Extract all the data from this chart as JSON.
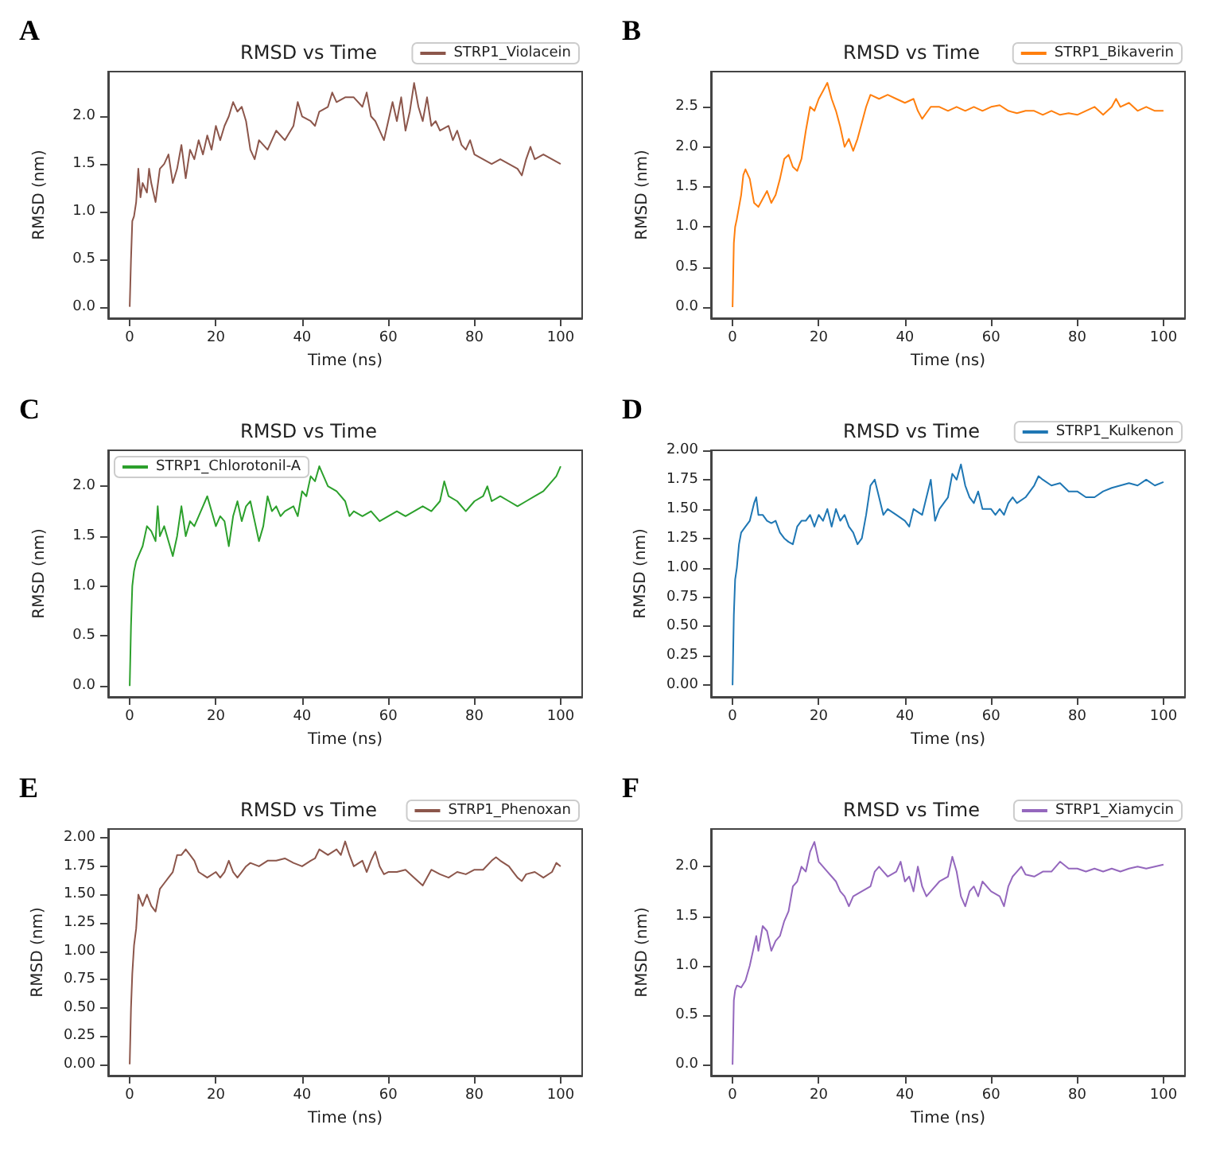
{
  "chart_data": [
    {
      "type": "line",
      "title": "RMSD vs Time",
      "xlabel": "Time (ns)",
      "ylabel": "RMSD (nm)",
      "annotations": [
        "A"
      ],
      "legend": "top right",
      "grid": false,
      "xlim": [
        -5,
        105
      ],
      "ylim": [
        -0.12,
        2.47
      ],
      "xticks": [
        0,
        20,
        40,
        60,
        80,
        100
      ],
      "yticks": [
        {
          "value": 0,
          "label": "0.0"
        },
        {
          "value": 0.5,
          "label": "0.5"
        },
        {
          "value": 1,
          "label": "1.0"
        },
        {
          "value": 1.5,
          "label": "1.5"
        },
        {
          "value": 2,
          "label": "2.0"
        }
      ],
      "series": [
        {
          "name": "STRP1_Violacein",
          "color": "#8c564b",
          "x": [
            0,
            0.3,
            0.6,
            1,
            1.5,
            2,
            2.5,
            3,
            4,
            4.5,
            5,
            6,
            7,
            8,
            9,
            10,
            11,
            12,
            13,
            14,
            15,
            16,
            17,
            18,
            19,
            20,
            21,
            22,
            23,
            24,
            25,
            26,
            27,
            28,
            29,
            30,
            32,
            34,
            36,
            38,
            39,
            40,
            42,
            43,
            44,
            46,
            47,
            48,
            50,
            52,
            54,
            55,
            56,
            57,
            58,
            59,
            60,
            61,
            62,
            63,
            64,
            65,
            66,
            67,
            68,
            69,
            70,
            71,
            72,
            74,
            75,
            76,
            77,
            78,
            79,
            80,
            82,
            84,
            86,
            88,
            90,
            91,
            92,
            93,
            94,
            96,
            98,
            100
          ],
          "values": [
            0,
            0.5,
            0.9,
            0.95,
            1.1,
            1.45,
            1.15,
            1.3,
            1.2,
            1.45,
            1.3,
            1.1,
            1.45,
            1.5,
            1.6,
            1.3,
            1.45,
            1.7,
            1.35,
            1.65,
            1.55,
            1.75,
            1.6,
            1.8,
            1.65,
            1.9,
            1.75,
            1.9,
            2.0,
            2.15,
            2.05,
            2.1,
            1.95,
            1.65,
            1.55,
            1.75,
            1.65,
            1.85,
            1.75,
            1.9,
            2.15,
            2.0,
            1.95,
            1.9,
            2.05,
            2.1,
            2.25,
            2.15,
            2.2,
            2.2,
            2.1,
            2.25,
            2.0,
            1.95,
            1.85,
            1.75,
            1.95,
            2.15,
            1.95,
            2.2,
            1.85,
            2.05,
            2.35,
            2.1,
            1.95,
            2.2,
            1.9,
            1.95,
            1.85,
            1.9,
            1.75,
            1.85,
            1.7,
            1.65,
            1.75,
            1.6,
            1.55,
            1.5,
            1.55,
            1.5,
            1.45,
            1.38,
            1.55,
            1.68,
            1.55,
            1.6,
            1.55,
            1.5
          ]
        }
      ]
    },
    {
      "type": "line",
      "title": "RMSD vs Time",
      "xlabel": "Time (ns)",
      "ylabel": "RMSD (nm)",
      "annotations": [
        "B"
      ],
      "legend": "top right",
      "grid": false,
      "xlim": [
        -5,
        105
      ],
      "ylim": [
        -0.14,
        2.94
      ],
      "xticks": [
        0,
        20,
        40,
        60,
        80,
        100
      ],
      "yticks": [
        {
          "value": 0,
          "label": "0.0"
        },
        {
          "value": 0.5,
          "label": "0.5"
        },
        {
          "value": 1,
          "label": "1.0"
        },
        {
          "value": 1.5,
          "label": "1.5"
        },
        {
          "value": 2,
          "label": "2.0"
        },
        {
          "value": 2.5,
          "label": "2.5"
        }
      ],
      "series": [
        {
          "name": "STRP1_Bikaverin",
          "color": "#ff7f0e",
          "x": [
            0,
            0.3,
            0.6,
            1,
            1.5,
            2,
            2.5,
            3,
            4,
            5,
            6,
            7,
            8,
            9,
            10,
            11,
            12,
            13,
            14,
            15,
            16,
            17,
            18,
            19,
            20,
            21,
            22,
            23,
            24,
            25,
            26,
            27,
            28,
            29,
            30,
            31,
            32,
            34,
            36,
            38,
            40,
            42,
            43,
            44,
            46,
            48,
            50,
            52,
            54,
            56,
            58,
            60,
            62,
            64,
            66,
            68,
            70,
            72,
            74,
            76,
            78,
            80,
            82,
            84,
            86,
            88,
            89,
            90,
            92,
            94,
            96,
            98,
            100
          ],
          "values": [
            0,
            0.8,
            1.0,
            1.1,
            1.25,
            1.4,
            1.65,
            1.72,
            1.6,
            1.3,
            1.25,
            1.35,
            1.45,
            1.3,
            1.4,
            1.6,
            1.85,
            1.9,
            1.75,
            1.7,
            1.85,
            2.2,
            2.5,
            2.45,
            2.6,
            2.7,
            2.8,
            2.6,
            2.45,
            2.25,
            2.0,
            2.1,
            1.95,
            2.1,
            2.3,
            2.5,
            2.65,
            2.6,
            2.65,
            2.6,
            2.55,
            2.6,
            2.45,
            2.35,
            2.5,
            2.5,
            2.45,
            2.5,
            2.45,
            2.5,
            2.45,
            2.5,
            2.52,
            2.45,
            2.42,
            2.45,
            2.45,
            2.4,
            2.45,
            2.4,
            2.42,
            2.4,
            2.45,
            2.5,
            2.4,
            2.5,
            2.6,
            2.5,
            2.55,
            2.45,
            2.5,
            2.45,
            2.45
          ]
        }
      ]
    },
    {
      "type": "line",
      "title": "RMSD vs Time",
      "xlabel": "Time (ns)",
      "ylabel": "RMSD (nm)",
      "annotations": [
        "C"
      ],
      "legend": "top left",
      "grid": false,
      "xlim": [
        -5,
        105
      ],
      "ylim": [
        -0.11,
        2.36
      ],
      "xticks": [
        0,
        20,
        40,
        60,
        80,
        100
      ],
      "yticks": [
        {
          "value": 0,
          "label": "0.0"
        },
        {
          "value": 0.5,
          "label": "0.5"
        },
        {
          "value": 1,
          "label": "1.0"
        },
        {
          "value": 1.5,
          "label": "1.5"
        },
        {
          "value": 2,
          "label": "2.0"
        }
      ],
      "series": [
        {
          "name": "STRP1_Chlorotonil-A",
          "color": "#2ca02c",
          "x": [
            0,
            0.3,
            0.6,
            1,
            1.5,
            2,
            3,
            4,
            5,
            6,
            6.5,
            7,
            8,
            9,
            10,
            11,
            12,
            13,
            14,
            15,
            16,
            17,
            18,
            19,
            20,
            21,
            22,
            23,
            24,
            25,
            26,
            27,
            28,
            29,
            30,
            31,
            32,
            33,
            34,
            35,
            36,
            38,
            39,
            40,
            41,
            42,
            43,
            44,
            45,
            46,
            48,
            50,
            51,
            52,
            54,
            56,
            58,
            60,
            62,
            64,
            66,
            68,
            70,
            72,
            73,
            74,
            76,
            78,
            80,
            82,
            83,
            84,
            86,
            88,
            90,
            92,
            94,
            96,
            98,
            99,
            100
          ],
          "values": [
            0,
            0.6,
            1.0,
            1.15,
            1.25,
            1.3,
            1.4,
            1.6,
            1.55,
            1.45,
            1.8,
            1.5,
            1.6,
            1.45,
            1.3,
            1.5,
            1.8,
            1.5,
            1.65,
            1.6,
            1.7,
            1.8,
            1.9,
            1.75,
            1.6,
            1.7,
            1.65,
            1.4,
            1.7,
            1.85,
            1.65,
            1.8,
            1.85,
            1.65,
            1.45,
            1.6,
            1.9,
            1.75,
            1.8,
            1.7,
            1.75,
            1.8,
            1.7,
            1.95,
            1.9,
            2.1,
            2.05,
            2.2,
            2.1,
            2.0,
            1.95,
            1.85,
            1.7,
            1.75,
            1.7,
            1.75,
            1.65,
            1.7,
            1.75,
            1.7,
            1.75,
            1.8,
            1.75,
            1.85,
            2.05,
            1.9,
            1.85,
            1.75,
            1.85,
            1.9,
            2.0,
            1.85,
            1.9,
            1.85,
            1.8,
            1.85,
            1.9,
            1.95,
            2.05,
            2.1,
            2.2
          ]
        }
      ]
    },
    {
      "type": "line",
      "title": "RMSD vs Time",
      "xlabel": "Time (ns)",
      "ylabel": "RMSD (nm)",
      "annotations": [
        "D"
      ],
      "legend": "top right",
      "grid": false,
      "xlim": [
        -5,
        105
      ],
      "ylim": [
        -0.1,
        2.0
      ],
      "xticks": [
        0,
        20,
        40,
        60,
        80,
        100
      ],
      "yticks": [
        {
          "value": 0,
          "label": "0.00"
        },
        {
          "value": 0.25,
          "label": "0.25"
        },
        {
          "value": 0.5,
          "label": "0.50"
        },
        {
          "value": 0.75,
          "label": "0.75"
        },
        {
          "value": 1,
          "label": "1.00"
        },
        {
          "value": 1.25,
          "label": "1.25"
        },
        {
          "value": 1.5,
          "label": "1.50"
        },
        {
          "value": 1.75,
          "label": "1.75"
        },
        {
          "value": 2,
          "label": "2.00"
        }
      ],
      "series": [
        {
          "name": "STRP1_Kulkenon",
          "color": "#1f77b4",
          "x": [
            0,
            0.3,
            0.6,
            1,
            1.5,
            2,
            3,
            4,
            5,
            5.5,
            6,
            7,
            8,
            9,
            10,
            11,
            12,
            13,
            14,
            15,
            16,
            17,
            18,
            19,
            20,
            21,
            22,
            23,
            24,
            25,
            26,
            27,
            28,
            29,
            30,
            31,
            32,
            33,
            34,
            35,
            36,
            38,
            40,
            41,
            42,
            44,
            45,
            46,
            47,
            48,
            50,
            51,
            52,
            53,
            54,
            55,
            56,
            57,
            58,
            60,
            61,
            62,
            63,
            64,
            65,
            66,
            68,
            70,
            71,
            72,
            74,
            76,
            78,
            80,
            82,
            84,
            86,
            88,
            90,
            92,
            94,
            96,
            98,
            100
          ],
          "values": [
            0,
            0.6,
            0.9,
            1.0,
            1.2,
            1.3,
            1.35,
            1.4,
            1.55,
            1.6,
            1.45,
            1.45,
            1.4,
            1.38,
            1.4,
            1.3,
            1.25,
            1.22,
            1.2,
            1.35,
            1.4,
            1.4,
            1.45,
            1.35,
            1.45,
            1.4,
            1.5,
            1.35,
            1.5,
            1.4,
            1.45,
            1.35,
            1.3,
            1.2,
            1.25,
            1.45,
            1.7,
            1.75,
            1.6,
            1.45,
            1.5,
            1.45,
            1.4,
            1.35,
            1.5,
            1.45,
            1.6,
            1.75,
            1.4,
            1.5,
            1.6,
            1.8,
            1.75,
            1.88,
            1.7,
            1.6,
            1.55,
            1.65,
            1.5,
            1.5,
            1.45,
            1.5,
            1.45,
            1.55,
            1.6,
            1.55,
            1.6,
            1.7,
            1.78,
            1.75,
            1.7,
            1.72,
            1.65,
            1.65,
            1.6,
            1.6,
            1.65,
            1.68,
            1.7,
            1.72,
            1.7,
            1.75,
            1.7,
            1.73
          ]
        }
      ]
    },
    {
      "type": "line",
      "title": "RMSD vs Time",
      "xlabel": "Time (ns)",
      "ylabel": "RMSD (nm)",
      "annotations": [
        "E"
      ],
      "legend": "top right",
      "grid": false,
      "xlim": [
        -5,
        105
      ],
      "ylim": [
        -0.1,
        2.08
      ],
      "xticks": [
        0,
        20,
        40,
        60,
        80,
        100
      ],
      "yticks": [
        {
          "value": 0,
          "label": "0.00"
        },
        {
          "value": 0.25,
          "label": "0.25"
        },
        {
          "value": 0.5,
          "label": "0.50"
        },
        {
          "value": 0.75,
          "label": "0.75"
        },
        {
          "value": 1,
          "label": "1.00"
        },
        {
          "value": 1.25,
          "label": "1.25"
        },
        {
          "value": 1.5,
          "label": "1.50"
        },
        {
          "value": 1.75,
          "label": "1.75"
        },
        {
          "value": 2,
          "label": "2.00"
        }
      ],
      "series": [
        {
          "name": "STRP1_Phenoxan",
          "color": "#8c564b",
          "x": [
            0,
            0.3,
            0.6,
            1,
            1.5,
            2,
            2.5,
            3,
            4,
            5,
            6,
            7,
            8,
            9,
            10,
            11,
            12,
            13,
            14,
            15,
            16,
            18,
            20,
            21,
            22,
            23,
            24,
            25,
            26,
            27,
            28,
            30,
            32,
            34,
            36,
            38,
            40,
            42,
            43,
            44,
            46,
            48,
            49,
            50,
            51,
            52,
            54,
            55,
            56,
            57,
            58,
            59,
            60,
            62,
            64,
            66,
            68,
            70,
            72,
            74,
            76,
            78,
            80,
            82,
            84,
            85,
            86,
            88,
            89,
            90,
            91,
            92,
            94,
            96,
            98,
            99,
            100
          ],
          "values": [
            0,
            0.5,
            0.8,
            1.05,
            1.2,
            1.5,
            1.45,
            1.4,
            1.5,
            1.4,
            1.35,
            1.55,
            1.6,
            1.65,
            1.7,
            1.85,
            1.85,
            1.9,
            1.85,
            1.8,
            1.7,
            1.65,
            1.7,
            1.65,
            1.7,
            1.8,
            1.7,
            1.65,
            1.7,
            1.75,
            1.78,
            1.75,
            1.8,
            1.8,
            1.82,
            1.78,
            1.75,
            1.8,
            1.82,
            1.9,
            1.85,
            1.9,
            1.85,
            1.97,
            1.85,
            1.75,
            1.8,
            1.7,
            1.8,
            1.88,
            1.75,
            1.68,
            1.7,
            1.7,
            1.72,
            1.65,
            1.58,
            1.72,
            1.68,
            1.65,
            1.7,
            1.68,
            1.72,
            1.72,
            1.8,
            1.83,
            1.8,
            1.75,
            1.7,
            1.65,
            1.62,
            1.68,
            1.7,
            1.65,
            1.7,
            1.78,
            1.75
          ]
        }
      ]
    },
    {
      "type": "line",
      "title": "RMSD vs Time",
      "xlabel": "Time (ns)",
      "ylabel": "RMSD (nm)",
      "annotations": [
        "F"
      ],
      "legend": "top right",
      "grid": false,
      "xlim": [
        -5,
        105
      ],
      "ylim": [
        -0.11,
        2.38
      ],
      "xticks": [
        0,
        20,
        40,
        60,
        80,
        100
      ],
      "yticks": [
        {
          "value": 0,
          "label": "0.0"
        },
        {
          "value": 0.5,
          "label": "0.5"
        },
        {
          "value": 1,
          "label": "1.0"
        },
        {
          "value": 1.5,
          "label": "1.5"
        },
        {
          "value": 2,
          "label": "2.0"
        }
      ],
      "series": [
        {
          "name": "STRP1_Xiamycin",
          "color": "#9467bd",
          "x": [
            0,
            0.3,
            0.6,
            1,
            2,
            3,
            4,
            5,
            5.5,
            6,
            7,
            8,
            9,
            10,
            11,
            12,
            13,
            14,
            15,
            16,
            17,
            18,
            19,
            20,
            21,
            22,
            23,
            24,
            25,
            26,
            27,
            28,
            30,
            32,
            33,
            34,
            35,
            36,
            38,
            39,
            40,
            41,
            42,
            43,
            44,
            45,
            46,
            48,
            50,
            51,
            52,
            53,
            54,
            55,
            56,
            57,
            58,
            60,
            62,
            63,
            64,
            65,
            66,
            67,
            68,
            70,
            72,
            74,
            76,
            78,
            80,
            82,
            84,
            86,
            88,
            90,
            92,
            94,
            96,
            98,
            100
          ],
          "values": [
            0,
            0.65,
            0.75,
            0.8,
            0.78,
            0.85,
            1.0,
            1.2,
            1.3,
            1.15,
            1.4,
            1.35,
            1.15,
            1.25,
            1.3,
            1.45,
            1.55,
            1.8,
            1.85,
            2.0,
            1.95,
            2.15,
            2.25,
            2.05,
            2.0,
            1.95,
            1.9,
            1.85,
            1.75,
            1.7,
            1.6,
            1.7,
            1.75,
            1.8,
            1.95,
            2.0,
            1.95,
            1.9,
            1.95,
            2.05,
            1.85,
            1.9,
            1.75,
            2.0,
            1.8,
            1.7,
            1.75,
            1.85,
            1.9,
            2.1,
            1.95,
            1.7,
            1.6,
            1.75,
            1.8,
            1.7,
            1.85,
            1.75,
            1.7,
            1.6,
            1.8,
            1.9,
            1.95,
            2.0,
            1.92,
            1.9,
            1.95,
            1.95,
            2.05,
            1.98,
            1.98,
            1.95,
            1.98,
            1.95,
            1.98,
            1.95,
            1.98,
            2.0,
            1.98,
            2.0,
            2.02
          ]
        }
      ]
    }
  ]
}
